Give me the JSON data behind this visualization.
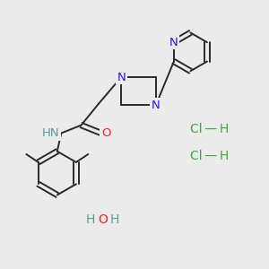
{
  "background_color": "#ebebeb",
  "bond_color": "#2a2a2a",
  "n_color": "#1a1aff",
  "o_color": "#ff2020",
  "cl_color": "#3aaa3a",
  "h_color": "#2a2a2a",
  "nh_color": "#5a9a9a",
  "title": "",
  "figsize": [
    3.0,
    3.0
  ],
  "dpi": 100,
  "xlim": [
    0,
    10
  ],
  "ylim": [
    0,
    10
  ]
}
